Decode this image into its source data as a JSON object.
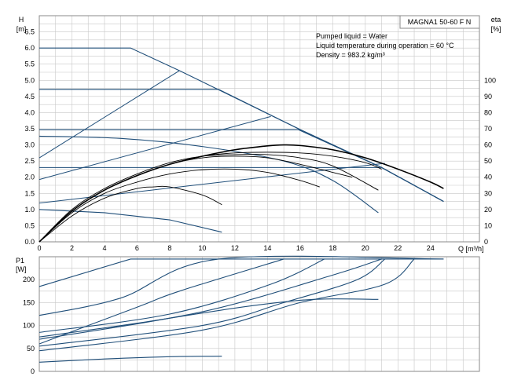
{
  "chart_data": [
    {
      "id": "head",
      "type": "line",
      "title": "MAGNA1 50-60 F N",
      "info_lines": [
        "Pumped liquid = Water",
        "Liquid temperature during operation = 60 °C",
        "Density = 983.2 kg/m³"
      ],
      "ylabel_left": "H",
      "ylabel_left_unit": "[m]",
      "ylabel_right": "eta",
      "ylabel_right_unit": "[%]",
      "xlabel": "Q [m³/h]",
      "xlim": [
        0,
        27
      ],
      "ylim_left": [
        0,
        7
      ],
      "ylim_right": [
        0,
        140
      ],
      "x_ticks": [
        "0",
        "2",
        "4",
        "6",
        "8",
        "10",
        "12",
        "14",
        "16",
        "18",
        "20",
        "22",
        "24"
      ],
      "y_ticks_left": [
        "0.0",
        "0.5",
        "1.0",
        "1.5",
        "2.0",
        "2.5",
        "3.0",
        "3.5",
        "4.0",
        "4.5",
        "5.0",
        "5.5",
        "6.0",
        "6.5"
      ],
      "y_ticks_right": [
        "0",
        "10",
        "20",
        "30",
        "40",
        "50",
        "60",
        "70",
        "80",
        "90",
        "100"
      ],
      "grid": true,
      "colors": {
        "curve": "#1f4e79",
        "efficiency": "#000000",
        "grid": "#c8c8c8"
      },
      "series": [
        {
          "kind": "head",
          "points": [
            [
              0,
              6.0
            ],
            [
              5.6,
              6.0
            ],
            [
              8.6,
              5.3
            ],
            [
              15.9,
              3.5
            ],
            [
              21.0,
              2.3
            ],
            [
              24.8,
              1.25
            ]
          ]
        },
        {
          "kind": "head",
          "points": [
            [
              0,
              4.72
            ],
            [
              11.0,
              4.72
            ],
            [
              15.9,
              3.5
            ],
            [
              21.0,
              2.3
            ],
            [
              24.8,
              1.25
            ]
          ]
        },
        {
          "kind": "head",
          "points": [
            [
              0,
              3.47
            ],
            [
              15.9,
              3.47
            ],
            [
              21.0,
              2.3
            ],
            [
              24.8,
              1.25
            ]
          ]
        },
        {
          "kind": "head",
          "points": [
            [
              0,
              2.3
            ],
            [
              21.0,
              2.3
            ],
            [
              24.8,
              1.25
            ]
          ]
        },
        {
          "kind": "head",
          "points": [
            [
              0,
              3.27
            ],
            [
              5,
              3.2
            ],
            [
              10,
              2.95
            ],
            [
              15,
              2.5
            ],
            [
              18,
              1.9
            ],
            [
              20.8,
              0.9
            ]
          ]
        },
        {
          "kind": "head",
          "points": [
            [
              0,
              1.0
            ],
            [
              4,
              0.9
            ],
            [
              8,
              0.68
            ],
            [
              11.2,
              0.3
            ]
          ]
        },
        {
          "kind": "system",
          "points": [
            [
              0,
              2.6
            ],
            [
              8.6,
              5.3
            ]
          ]
        },
        {
          "kind": "system",
          "points": [
            [
              0,
              1.93
            ],
            [
              14.2,
              3.88
            ]
          ]
        },
        {
          "kind": "system",
          "points": [
            [
              0,
              1.2
            ],
            [
              21.2,
              2.43
            ]
          ]
        },
        {
          "kind": "efficiency",
          "points": [
            [
              0,
              0
            ],
            [
              2,
              19
            ],
            [
              4,
              32
            ],
            [
              6,
              41
            ],
            [
              8,
              48
            ],
            [
              10,
              53
            ],
            [
              12,
              57
            ],
            [
              14,
              59.4
            ],
            [
              15,
              60
            ],
            [
              16,
              59.6
            ],
            [
              18,
              57
            ],
            [
              20,
              52
            ],
            [
              22,
              45
            ],
            [
              24,
              37
            ],
            [
              24.8,
              33
            ]
          ]
        },
        {
          "kind": "efficiency",
          "points": [
            [
              0,
              0
            ],
            [
              2,
              19
            ],
            [
              4,
              32
            ],
            [
              6,
              41
            ],
            [
              8,
              48
            ],
            [
              10,
              53
            ],
            [
              12,
              55
            ],
            [
              14,
              55.5
            ],
            [
              16,
              55
            ],
            [
              18,
              53
            ],
            [
              20,
              49
            ],
            [
              21,
              45
            ]
          ]
        },
        {
          "kind": "efficiency",
          "points": [
            [
              0,
              0
            ],
            [
              2,
              19
            ],
            [
              4,
              32
            ],
            [
              6,
              41
            ],
            [
              8,
              48
            ],
            [
              10,
              52
            ],
            [
              12,
              53
            ],
            [
              14,
              52
            ],
            [
              16,
              48
            ],
            [
              18,
              43
            ],
            [
              19.2,
              40
            ]
          ]
        },
        {
          "kind": "efficiency",
          "points": [
            [
              0,
              0
            ],
            [
              2,
              20
            ],
            [
              4,
              33
            ],
            [
              6,
              42
            ],
            [
              8,
              49
            ],
            [
              10,
              53
            ],
            [
              12,
              54
            ],
            [
              14,
              54
            ],
            [
              16,
              52
            ],
            [
              18,
              47
            ],
            [
              20.8,
              32
            ]
          ]
        },
        {
          "kind": "efficiency",
          "points": [
            [
              0,
              0
            ],
            [
              2,
              18
            ],
            [
              4,
              30
            ],
            [
              6,
              37
            ],
            [
              8,
              42
            ],
            [
              10,
              44.6
            ],
            [
              12,
              45
            ],
            [
              14,
              43
            ],
            [
              16,
              38
            ],
            [
              17.2,
              34
            ]
          ]
        },
        {
          "kind": "efficiency",
          "points": [
            [
              0,
              0
            ],
            [
              2,
              16
            ],
            [
              4,
              27
            ],
            [
              6,
              33
            ],
            [
              7,
              34
            ],
            [
              8,
              34
            ],
            [
              10,
              29
            ],
            [
              11.2,
              23
            ]
          ]
        }
      ]
    },
    {
      "id": "power",
      "type": "line",
      "ylabel": "P1",
      "ylabel_unit": "[W]",
      "xlim": [
        0,
        27
      ],
      "ylim": [
        0,
        250
      ],
      "y_ticks": [
        "0",
        "50",
        "100",
        "150",
        "200"
      ],
      "grid": true,
      "series": [
        {
          "kind": "power",
          "points": [
            [
              0,
              185
            ],
            [
              5.6,
              245
            ],
            [
              24.8,
              245
            ]
          ]
        },
        {
          "kind": "power",
          "points": [
            [
              0,
              122
            ],
            [
              5,
              160
            ],
            [
              11,
              245
            ],
            [
              24.8,
              245
            ]
          ]
        },
        {
          "kind": "power",
          "points": [
            [
              0,
              60
            ],
            [
              6,
              140
            ],
            [
              8.6,
              175
            ],
            [
              15,
              245
            ]
          ]
        },
        {
          "kind": "power",
          "points": [
            [
              0,
              85
            ],
            [
              8,
              125
            ],
            [
              14.2,
              190
            ],
            [
              17.5,
              245
            ]
          ]
        },
        {
          "kind": "power",
          "points": [
            [
              0,
              70
            ],
            [
              10,
              130
            ],
            [
              18,
              210
            ],
            [
              21,
              245
            ]
          ]
        },
        {
          "kind": "power",
          "points": [
            [
              0,
              55
            ],
            [
              10,
              100
            ],
            [
              15,
              150
            ],
            [
              19.5,
              200
            ],
            [
              21.2,
              245
            ]
          ]
        },
        {
          "kind": "power",
          "points": [
            [
              0,
              45
            ],
            [
              10,
              90
            ],
            [
              16,
              150
            ],
            [
              21.2,
              190
            ],
            [
              23,
              245
            ]
          ]
        },
        {
          "kind": "power",
          "points": [
            [
              0,
              75
            ],
            [
              6,
              105
            ],
            [
              12,
              138
            ],
            [
              16,
              155
            ],
            [
              18,
              158
            ],
            [
              20.8,
              157
            ]
          ]
        },
        {
          "kind": "power",
          "points": [
            [
              0,
              20
            ],
            [
              4,
              27
            ],
            [
              8,
              32
            ],
            [
              11.2,
              33
            ]
          ]
        }
      ]
    }
  ]
}
